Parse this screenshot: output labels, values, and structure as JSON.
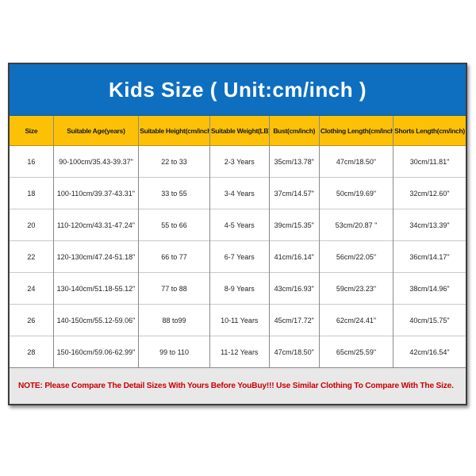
{
  "banner": {
    "title": "Kids Size ( Unit:cm/inch )",
    "bg_color": "#0E6FC1",
    "text_color": "#FFFFFF"
  },
  "table": {
    "header_bg_color": "#FCC107",
    "header_text_color": "#1A1A1A",
    "columns": [
      "Size",
      "Suitable Age(years)",
      "Suitable Height(cm/inch)",
      "Suitable Weight(LB)",
      "Bust(cm/inch)",
      "Clothing Length(cm/inch)",
      "Shorts Length(cm/inch)"
    ],
    "rows": [
      [
        "16",
        "90-100cm/35.43-39.37\"",
        "22 to 33",
        "2-3 Years",
        "35cm/13.78\"",
        "47cm/18.50\"",
        "30cm/11.81\""
      ],
      [
        "18",
        "100-110cm/39.37-43.31\"",
        "33 to 55",
        "3-4 Years",
        "37cm/14.57\"",
        "50cm/19.69\"",
        "32cm/12.60\""
      ],
      [
        "20",
        "110-120cm/43.31-47.24\"",
        "55 to 66",
        "4-5 Years",
        "39cm/15.35\"",
        "53cm/20.87 \"",
        "34cm/13.39\""
      ],
      [
        "22",
        "120-130cm/47.24-51.18\"",
        "66 to 77",
        "6-7 Years",
        "41cm/16.14\"",
        "56cm/22.05\"",
        "36cm/14.17\""
      ],
      [
        "24",
        "130-140cm/51.18-55.12\"",
        "77 to 88",
        "8-9 Years",
        "43cm/16.93\"",
        "59cm/23.23\"",
        "38cm/14.96\""
      ],
      [
        "26",
        "140-150cm/55.12-59.06\"",
        "88 to99",
        "10-11 Years",
        "45cm/17.72\"",
        "62cm/24.41\"",
        "40cm/15.75\""
      ],
      [
        "28",
        "150-160cm/59.06-62.99\"",
        "99 to 110",
        "11-12 Years",
        "47cm/18.50\"",
        "65cm/25.59\"",
        "42cm/16.54\""
      ]
    ]
  },
  "note": {
    "text": "NOTE: Please Compare The Detail Sizes With Yours Before YouBuy!!! Use Similar Clothing To Compare With The Size.",
    "bg_color": "#E8E8E8",
    "text_color": "#CC0000"
  }
}
